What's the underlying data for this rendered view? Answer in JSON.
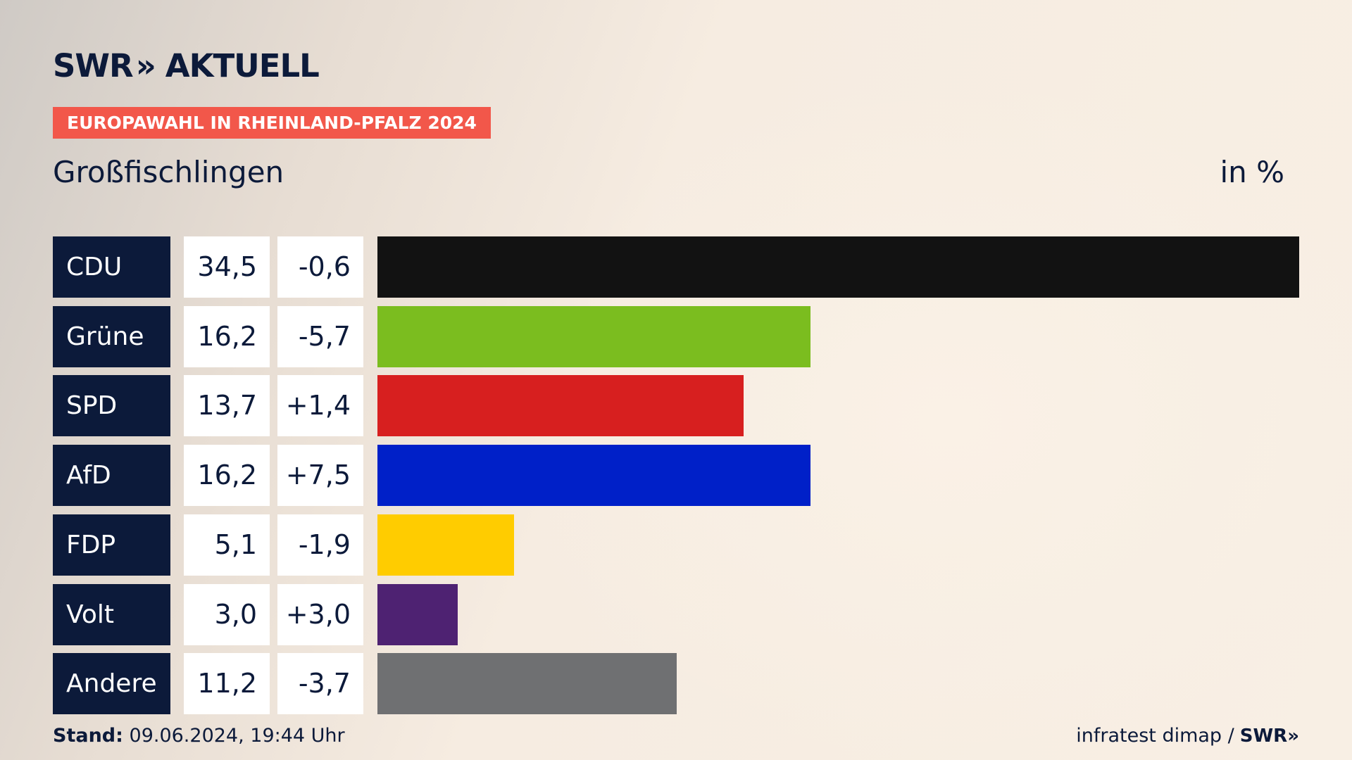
{
  "header": {
    "logo_text": "SWR",
    "logo_chevrons": "»",
    "logo_sub": "AKTUELL",
    "badge": "EUROPAWAHL IN RHEINLAND-PFALZ 2024",
    "region": "Großfischlingen",
    "unit": "in %"
  },
  "chart_data": {
    "type": "bar",
    "orientation": "horizontal",
    "categories": [
      "CDU",
      "Grüne",
      "SPD",
      "AfD",
      "FDP",
      "Volt",
      "Andere"
    ],
    "values": [
      34.5,
      16.2,
      13.7,
      16.2,
      5.1,
      3.0,
      11.2
    ],
    "value_labels": [
      "34,5",
      "16,2",
      "13,7",
      "16,2",
      "5,1",
      "3,0",
      "11,2"
    ],
    "diff_labels": [
      "-0,6",
      "-5,7",
      "+1,4",
      "+7,5",
      "-1,9",
      "+3,0",
      "-3,7"
    ],
    "colors": [
      "#121212",
      "#7bbd1f",
      "#d71f1f",
      "#0020c8",
      "#ffcc00",
      "#4e2272",
      "#6f7072"
    ],
    "xlim": [
      0,
      34.5
    ]
  },
  "footer": {
    "stand_label": "Stand:",
    "stand_value": "09.06.2024, 19:44 Uhr",
    "source": "infratest dimap /",
    "source_logo": "SWR»"
  }
}
